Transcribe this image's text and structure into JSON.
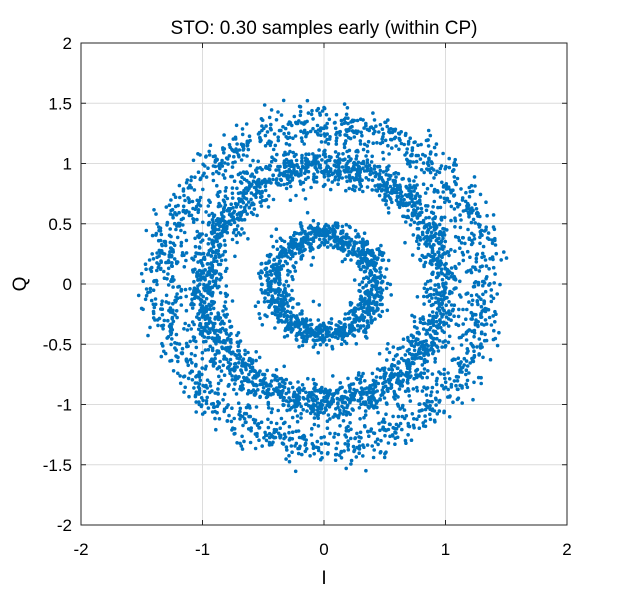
{
  "chart_data": {
    "type": "scatter",
    "title": "STO: 0.30 samples early (within CP)",
    "xlabel": "I",
    "ylabel": "Q",
    "xlim": [
      -2,
      2
    ],
    "ylim": [
      -2,
      2
    ],
    "xticks": [
      -2,
      -1,
      0,
      1,
      2
    ],
    "yticks": [
      -2,
      -1.5,
      -1,
      -0.5,
      0,
      0.5,
      1,
      1.5,
      2
    ],
    "xtick_labels": [
      "-2",
      "-1",
      "0",
      "1",
      "2"
    ],
    "ytick_labels": [
      "-2",
      "-1.5",
      "-1",
      "-0.5",
      "0",
      "0.5",
      "1",
      "1.5",
      "2"
    ],
    "grid": true,
    "marker_color": "#0072BD",
    "series": [
      {
        "rings": [
          {
            "radius": 0.42,
            "spread": 0.06,
            "count": 1100
          },
          {
            "radius": 0.98,
            "spread": 0.08,
            "count": 2300
          },
          {
            "radius": 1.32,
            "spread": 0.09,
            "count": 1500
          }
        ]
      }
    ]
  }
}
